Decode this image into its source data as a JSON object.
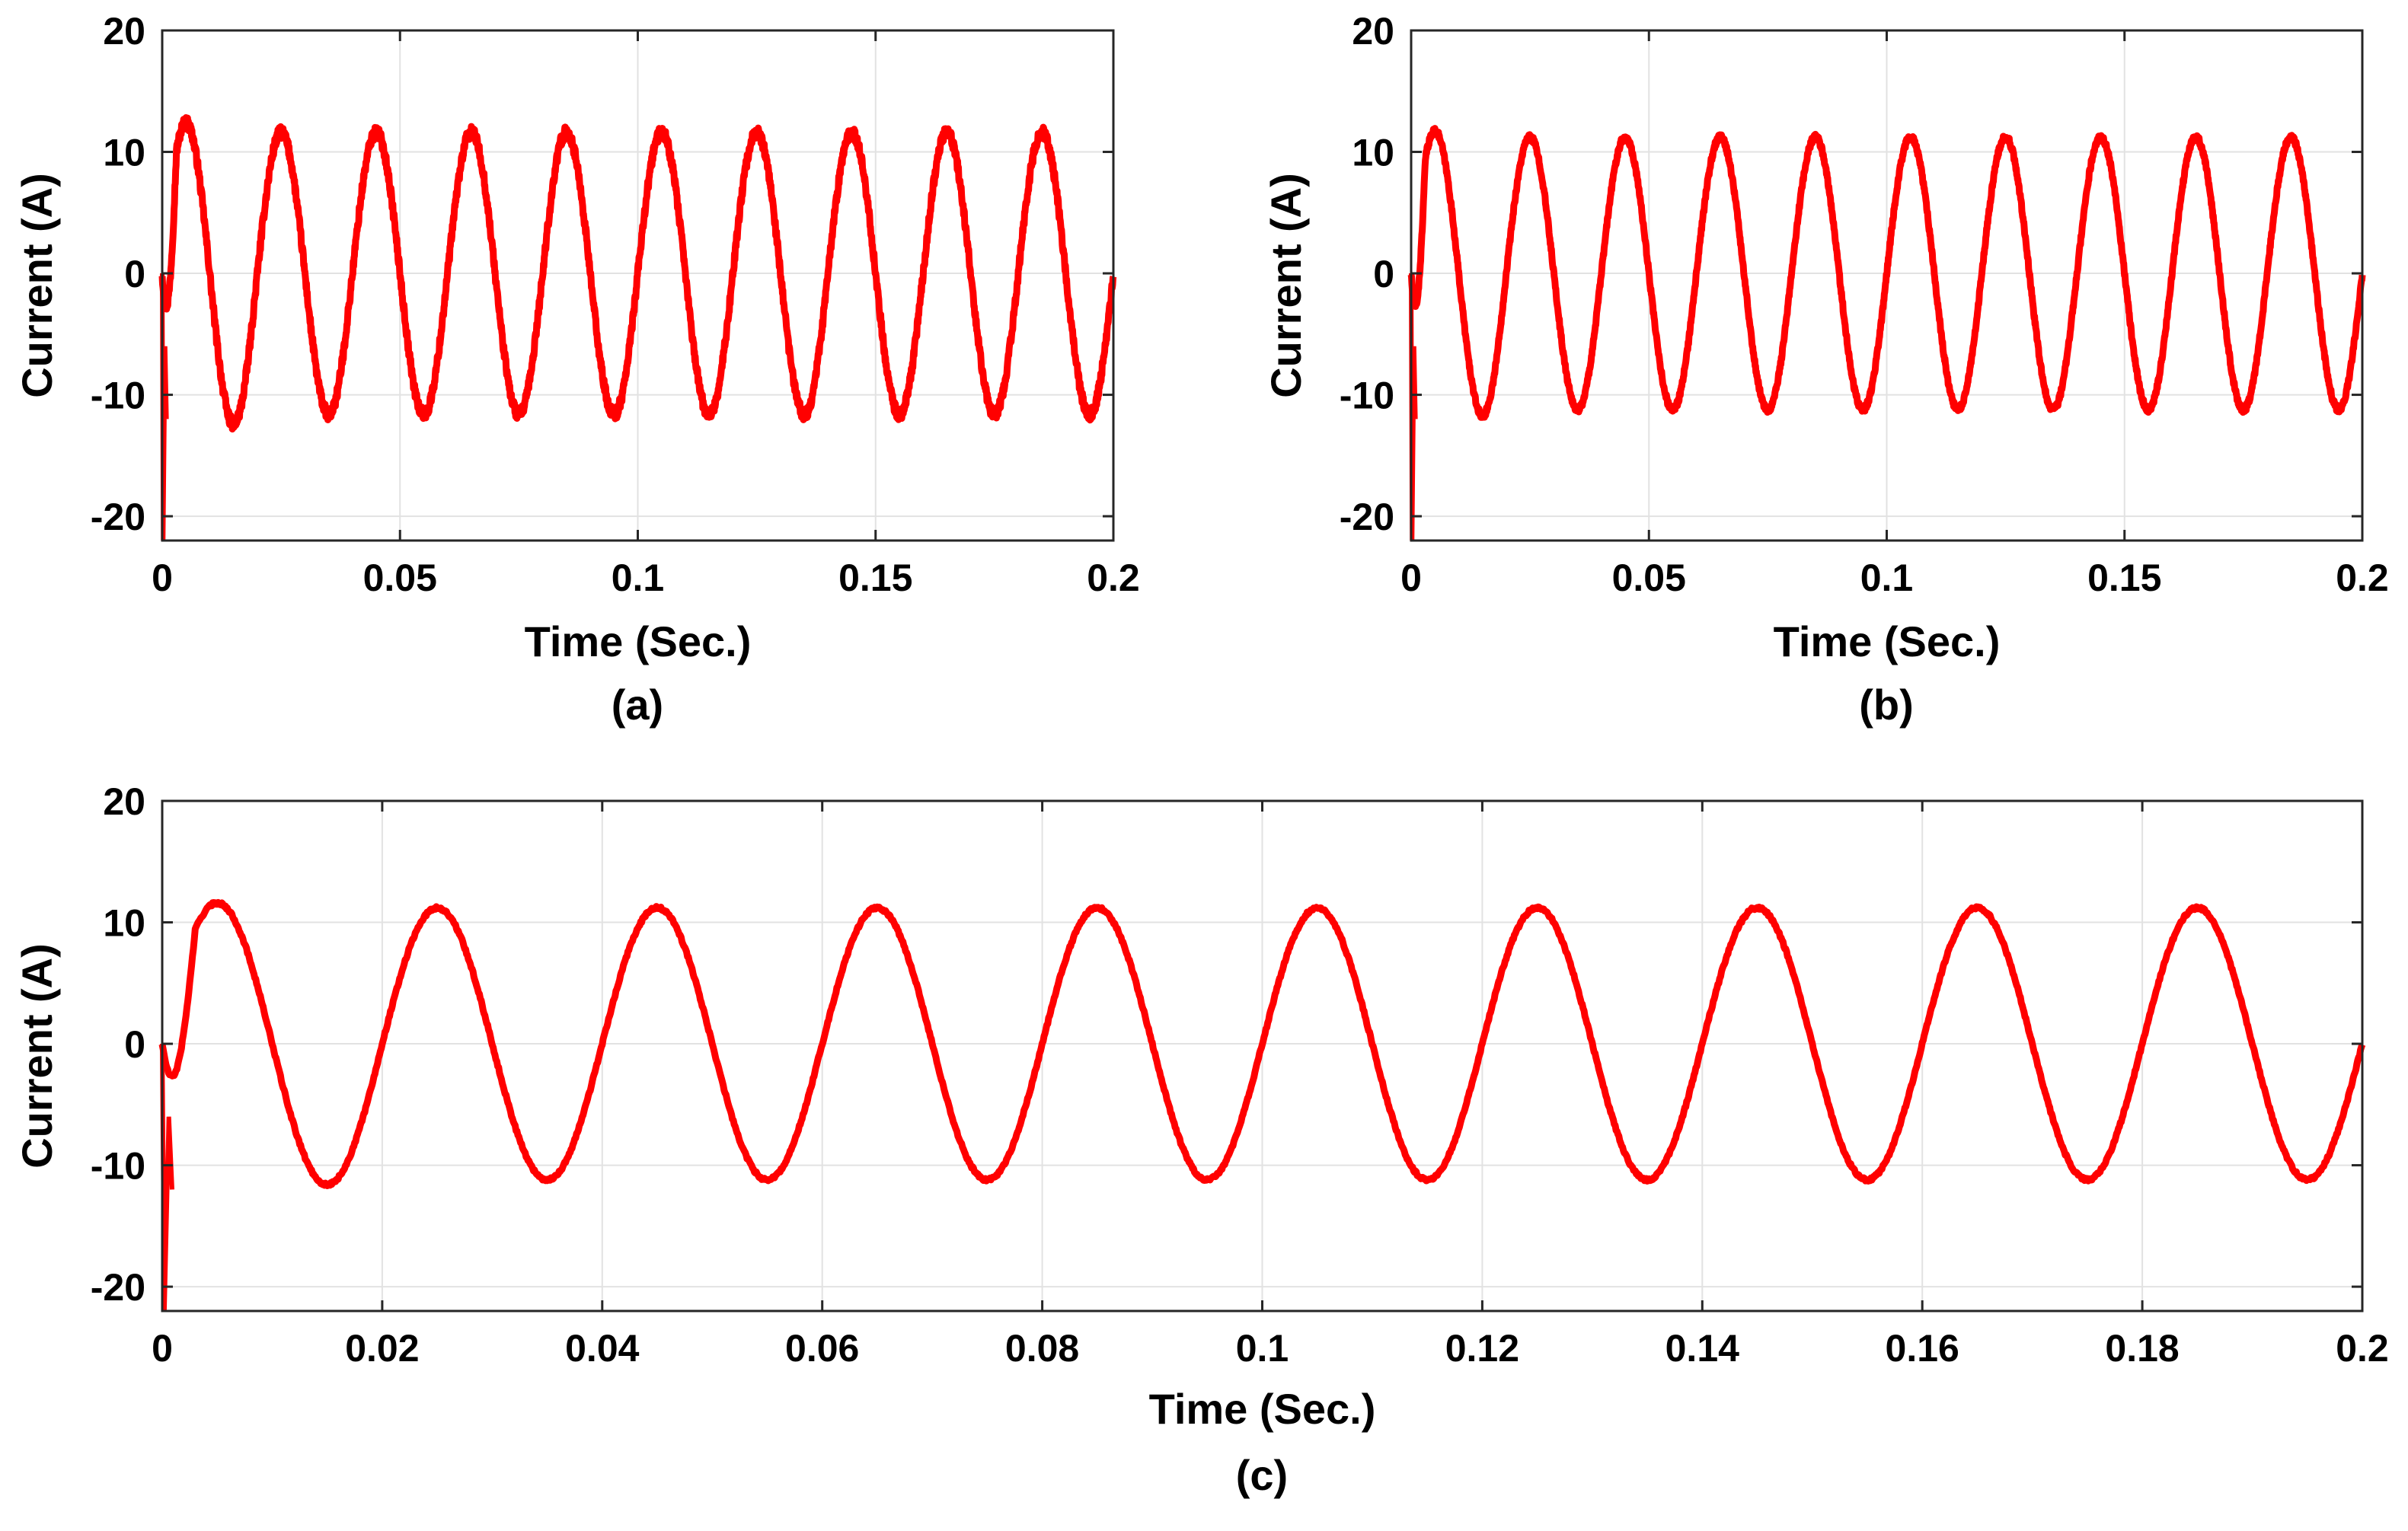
{
  "chart_data": [
    {
      "id": "a",
      "type": "line",
      "caption": "(a)",
      "xlabel": "Time (Sec.)",
      "ylabel": "Current (A)",
      "xlim": [
        0,
        0.2
      ],
      "ylim": [
        -22,
        20
      ],
      "xticks": [
        0,
        0.05,
        0.1,
        0.15,
        0.2
      ],
      "xtick_labels": [
        "0",
        "0.05",
        "0.1",
        "0.15",
        "0.2"
      ],
      "yticks": [
        -20,
        -10,
        0,
        10,
        20
      ],
      "ytick_labels": [
        "-20",
        "-10",
        "0",
        "10",
        "20"
      ],
      "grid": true,
      "series": [
        {
          "name": "Current",
          "color": "#ff0000",
          "frequency_hz": 50,
          "amplitude": 11.6,
          "first_peak": 12.4,
          "noise_amplitude": 0.5,
          "startup_spike_min": -22
        }
      ]
    },
    {
      "id": "b",
      "type": "line",
      "caption": "(b)",
      "xlabel": "Time (Sec.)",
      "ylabel": "Current (A)",
      "xlim": [
        0,
        0.2
      ],
      "ylim": [
        -22,
        20
      ],
      "xticks": [
        0,
        0.05,
        0.1,
        0.15,
        0.2
      ],
      "xtick_labels": [
        "0",
        "0.05",
        "0.1",
        "0.15",
        "0.2"
      ],
      "yticks": [
        -20,
        -10,
        0,
        10,
        20
      ],
      "ytick_labels": [
        "-20",
        "-10",
        "0",
        "10",
        "20"
      ],
      "grid": true,
      "series": [
        {
          "name": "Current",
          "color": "#ff0000",
          "frequency_hz": 50,
          "amplitude": 11.2,
          "first_peak": 11.7,
          "noise_amplitude": 0.25,
          "startup_spike_min": -22
        }
      ]
    },
    {
      "id": "c",
      "type": "line",
      "caption": "(c)",
      "xlabel": "Time (Sec.)",
      "ylabel": "Current (A)",
      "xlim": [
        0,
        0.2
      ],
      "ylim": [
        -22,
        20
      ],
      "xticks": [
        0,
        0.02,
        0.04,
        0.06,
        0.08,
        0.1,
        0.12,
        0.14,
        0.16,
        0.18,
        0.2
      ],
      "xtick_labels": [
        "0",
        "0.02",
        "0.04",
        "0.06",
        "0.08",
        "0.1",
        "0.12",
        "0.14",
        "0.16",
        "0.18",
        "0.2"
      ],
      "yticks": [
        -20,
        -10,
        0,
        10,
        20
      ],
      "ytick_labels": [
        "-20",
        "-10",
        "0",
        "10",
        "20"
      ],
      "grid": true,
      "series": [
        {
          "name": "Current",
          "color": "#ff0000",
          "frequency_hz": 50,
          "amplitude": 11.2,
          "first_peak": 11.6,
          "noise_amplitude": 0.12,
          "startup_spike_min": -22
        }
      ]
    }
  ]
}
